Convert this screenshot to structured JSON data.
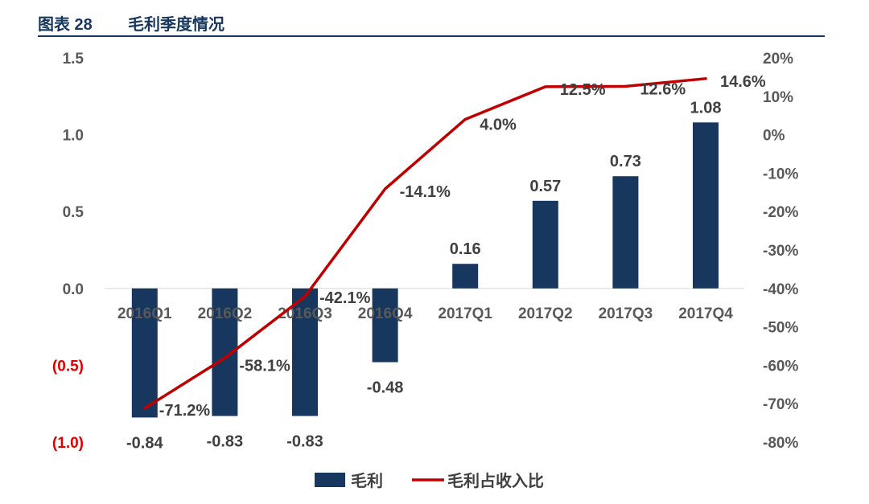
{
  "header": {
    "figure_label": "图表 28",
    "title": "毛利季度情况"
  },
  "colors": {
    "bar": "#17375e",
    "line": "#c00000",
    "negative_tick": "#e00000",
    "axis_text": "#595959",
    "label_text": "#404040"
  },
  "chart_data": {
    "type": "bar",
    "title": "毛利季度情况",
    "categories": [
      "2016Q1",
      "2016Q2",
      "2016Q3",
      "2016Q4",
      "2017Q1",
      "2017Q2",
      "2017Q3",
      "2017Q4"
    ],
    "series": [
      {
        "name": "毛利",
        "type": "bar",
        "axis": "left",
        "values": [
          -0.84,
          -0.83,
          -0.83,
          -0.48,
          0.16,
          0.57,
          0.73,
          1.08
        ],
        "labels": [
          "-0.84",
          "-0.83",
          "-0.83",
          "-0.48",
          "0.16",
          "0.57",
          "0.73",
          "1.08"
        ]
      },
      {
        "name": "毛利占收入比",
        "type": "line",
        "axis": "right",
        "values": [
          -71.2,
          -58.1,
          -42.1,
          -14.1,
          4.0,
          12.5,
          12.6,
          14.6
        ],
        "labels": [
          "-71.2%",
          "-58.1%",
          "-42.1%",
          "-14.1%",
          "4.0%",
          "12.5%",
          "12.6%",
          "14.6%"
        ]
      }
    ],
    "y_left": {
      "ylim": [
        -1.0,
        1.5
      ],
      "ticks": [
        1.5,
        1.0,
        0.5,
        0.0,
        -0.5,
        -1.0
      ],
      "tick_labels": [
        "1.5",
        "1.0",
        "0.5",
        "0.0",
        "(0.5)",
        "(1.0)"
      ]
    },
    "y_right": {
      "ylim": [
        -80,
        20
      ],
      "ticks": [
        20,
        10,
        0,
        -10,
        -20,
        -30,
        -40,
        -50,
        -60,
        -70,
        -80
      ],
      "tick_labels": [
        "20%",
        "10%",
        "0%",
        "-10%",
        "-20%",
        "-30%",
        "-40%",
        "-50%",
        "-60%",
        "-70%",
        "-80%"
      ]
    },
    "legend": {
      "position": "bottom"
    },
    "grid": false
  }
}
